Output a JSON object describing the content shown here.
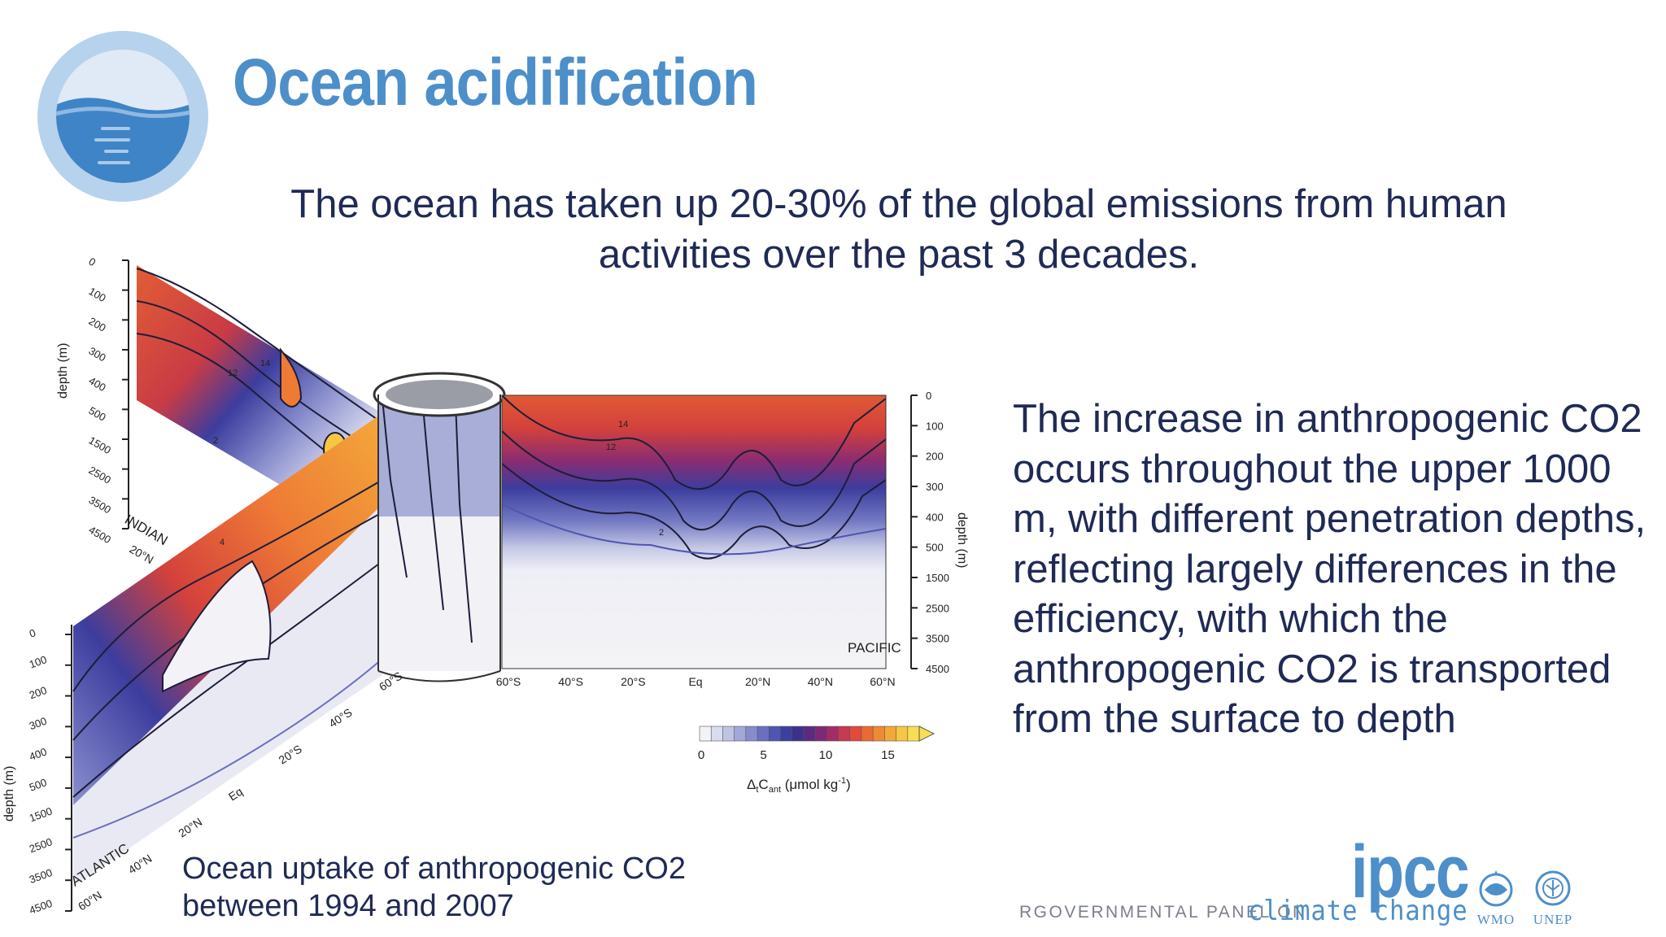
{
  "header": {
    "title": "Ocean acidification"
  },
  "headline": "The ocean has taken up 20-30% of the global emissions from human activities over the past 3 decades.",
  "body_text": "The increase in anthropogenic CO2 occurs throughout the upper 1000 m, with different penetration depths, reflecting largely differences in the efficiency, with which the anthropogenic CO2 is transported from the surface to depth",
  "caption": {
    "line1": "Ocean uptake of anthropogenic CO2",
    "line2": "between 1994 and 2007"
  },
  "figure": {
    "sections": {
      "indian": "INDIAN",
      "atlantic": "ATLANTIC",
      "pacific": "PACIFIC"
    },
    "depth_axis_label": "depth (m)",
    "depth_ticks": [
      "0",
      "100",
      "200",
      "300",
      "400",
      "500",
      "1500",
      "2500",
      "3500",
      "4500"
    ],
    "pacific_lat_ticks": [
      "60°S",
      "40°S",
      "20°S",
      "Eq",
      "20°N",
      "40°N",
      "60°N"
    ],
    "indian_lat_ticks": [
      "20°N"
    ],
    "atlantic_lat_ticks": [
      "60°S",
      "40°S",
      "20°S",
      "Eq",
      "20°N",
      "40°N",
      "60°N"
    ],
    "contour_labels": [
      "14",
      "12",
      "2",
      "14",
      "12",
      "4",
      "2"
    ],
    "colorbar": {
      "ticks": [
        "0",
        "5",
        "10",
        "15"
      ],
      "label_prefix": "Δ",
      "label_sub_t": "t",
      "label_main": "C",
      "label_sub_ant": "ant",
      "label_units": " (μmol kg",
      "label_exp": "-1",
      "label_close": ")",
      "colors": [
        "#f2f2f7",
        "#d9dcef",
        "#bfc3e4",
        "#a3a8d8",
        "#878dcb",
        "#6a70be",
        "#4f55b0",
        "#3b3fa0",
        "#3c318c",
        "#5a2b80",
        "#7d2a76",
        "#a22c66",
        "#c63a52",
        "#e04b3c",
        "#ea6a34",
        "#ef8a34",
        "#f3a93a",
        "#f6c743",
        "#f8de55"
      ]
    },
    "palette": {
      "ocean_blue": "#4d8fc9",
      "deep_blue": "#2e3a8a",
      "red": "#d5403b",
      "orange": "#ee7a36"
    }
  },
  "logo": {
    "ipcc": "ipcc",
    "subtitle_a": "RGOVERNMENTAL PANEL ON",
    "subtitle_b": "climate change",
    "wmo": "WMO",
    "unep": "UNEP"
  }
}
